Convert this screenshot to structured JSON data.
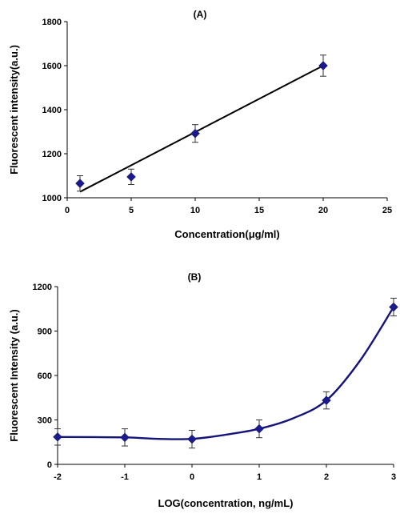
{
  "chart_data": [
    {
      "type": "scatter",
      "title": "(A)",
      "xlabel": "Concentration(μg/ml)",
      "ylabel": "Fluorescent intensity(a.u.)",
      "xlim": [
        0,
        25
      ],
      "ylim": [
        1000,
        1800
      ],
      "xticks": [
        0,
        5,
        10,
        15,
        20,
        25
      ],
      "yticks": [
        1000,
        1200,
        1400,
        1600,
        1800
      ],
      "grid": false,
      "points": [
        {
          "x": 1,
          "y": 1065,
          "err": 35
        },
        {
          "x": 5,
          "y": 1095,
          "err": 35
        },
        {
          "x": 10,
          "y": 1292,
          "err": 40
        },
        {
          "x": 20,
          "y": 1600,
          "err": 48
        }
      ],
      "trendline": {
        "x": [
          1,
          20
        ],
        "y": [
          1027,
          1600
        ]
      }
    },
    {
      "type": "line",
      "title": "(B)",
      "xlabel": "LOG(concentration, ng/mL)",
      "ylabel": "Fluorescent Intensity (a.u.)",
      "xlim": [
        -2,
        3
      ],
      "ylim": [
        0,
        1200
      ],
      "xticks": [
        -2,
        -1,
        0,
        1,
        2,
        3
      ],
      "yticks": [
        0,
        300,
        600,
        900,
        1200
      ],
      "grid": false,
      "points": [
        {
          "x": -2,
          "y": 185,
          "err": 55
        },
        {
          "x": -1,
          "y": 182,
          "err": 58
        },
        {
          "x": 0,
          "y": 170,
          "err": 60
        },
        {
          "x": 1,
          "y": 240,
          "err": 60
        },
        {
          "x": 2,
          "y": 432,
          "err": 58
        },
        {
          "x": 3,
          "y": 1062,
          "err": 60
        }
      ],
      "curve": {
        "x": [
          -2,
          -1,
          -0.5,
          0,
          0.5,
          1,
          1.5,
          2,
          2.5,
          3
        ],
        "y": [
          185,
          182,
          172,
          172,
          200,
          240,
          310,
          432,
          700,
          1062
        ]
      }
    }
  ]
}
